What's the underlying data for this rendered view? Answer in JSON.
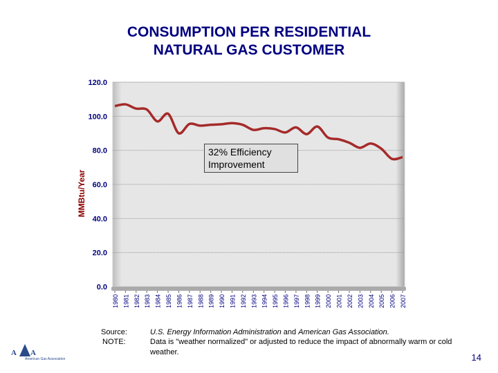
{
  "title_line1": "CONSUMPTION PER RESIDENTIAL",
  "title_line2": "NATURAL GAS CUSTOMER",
  "chart_data": {
    "type": "line",
    "title": "CONSUMPTION PER RESIDENTIAL NATURAL GAS CUSTOMER",
    "xlabel": "",
    "ylabel": "MMBtu/Year",
    "ylim": [
      0,
      120
    ],
    "yticks": [
      "0.0",
      "20.0",
      "40.0",
      "60.0",
      "80.0",
      "100.0",
      "120.0"
    ],
    "grid": true,
    "line_color": "#a52a2a",
    "categories": [
      "1980",
      "1981",
      "1982",
      "1983",
      "1984",
      "1985",
      "1986",
      "1987",
      "1988",
      "1989",
      "1990",
      "1991",
      "1992",
      "1993",
      "1994",
      "1995",
      "1996",
      "1997",
      "1998",
      "1999",
      "2000",
      "2001",
      "2002",
      "2003",
      "2004",
      "2005",
      "2006",
      "2007"
    ],
    "values": [
      106,
      107,
      104.5,
      104,
      97,
      101.5,
      90,
      95.5,
      94.5,
      95,
      95.3,
      96,
      95,
      92,
      93,
      92.5,
      90.5,
      93.5,
      89.5,
      94,
      87.5,
      86.5,
      84.5,
      81.5,
      84,
      81,
      75,
      76
    ],
    "annotation": "32% Efficiency Improvement"
  },
  "annotation_line1": "32% Efficiency",
  "annotation_line2": "Improvement",
  "source_label": "Source:",
  "source_text_1": "U.S. Energy Information Administration",
  "source_and": " and ",
  "source_text_2": "American Gas Association.",
  "note_label": "NOTE:",
  "note_text": " Data is \"weather normalized\" or adjusted to reduce the impact of abnormally warm or cold weather.",
  "page_number": "14",
  "logo_text": "AGA",
  "logo_subtext": "American Gas Association"
}
